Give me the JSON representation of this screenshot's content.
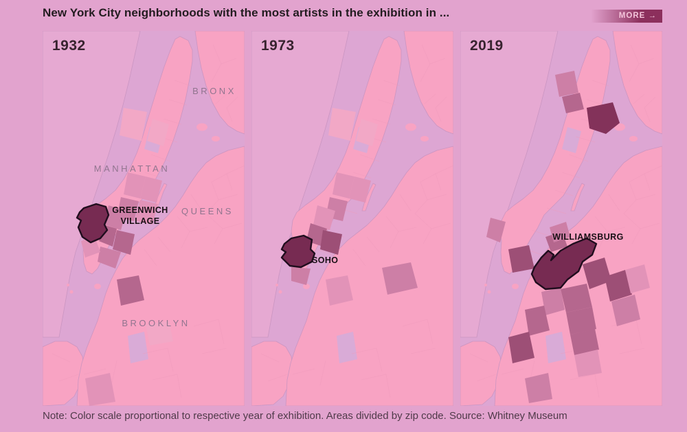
{
  "header": {
    "title": "New York City neighborhoods with the most artists in the exhibition in ...",
    "more_label": "MORE",
    "more_arrow": "→"
  },
  "panels": [
    {
      "year": "1932",
      "highlight": "Greenwich Village",
      "highlight_lines": [
        "GREENWICH",
        "VILLAGE"
      ],
      "borough_labels": [
        "BRONX",
        "MANHATTAN",
        "QUEENS",
        "BROOKLYN"
      ]
    },
    {
      "year": "1973",
      "highlight": "SoHo",
      "highlight_lines": [
        "SOHO"
      ]
    },
    {
      "year": "2019",
      "highlight": "Williamsburg",
      "highlight_lines": [
        "WILLIAMSBURG"
      ]
    }
  ],
  "footer": {
    "note": "Note: Color scale proportional to respective year of exhibition. Areas divided by zip code. Source: Whitney Museum"
  },
  "colors": {
    "page_bg": "#e2a3ce",
    "water": "#dda6d3",
    "far_land": "#e6a9d2",
    "land": "#f8a3c3",
    "coast": "#c893c0",
    "park": "#d9abd7",
    "zip_line": "#ef9abc",
    "s1": "#f2a8c6",
    "s2": "#e293b8",
    "s3": "#cd7fa6",
    "s4": "#b5678e",
    "s5": "#9d4f76",
    "s6": "#83325a",
    "highlight": "#772b52",
    "outline": "#200d1e",
    "title_text": "#231c20",
    "year_text": "#38232f",
    "borough_text": "#91758f",
    "hood_text": "#1a1016",
    "note_text": "#4f3a49",
    "more_grad": "#8c2f5c",
    "more_text": "#f4c4da"
  }
}
